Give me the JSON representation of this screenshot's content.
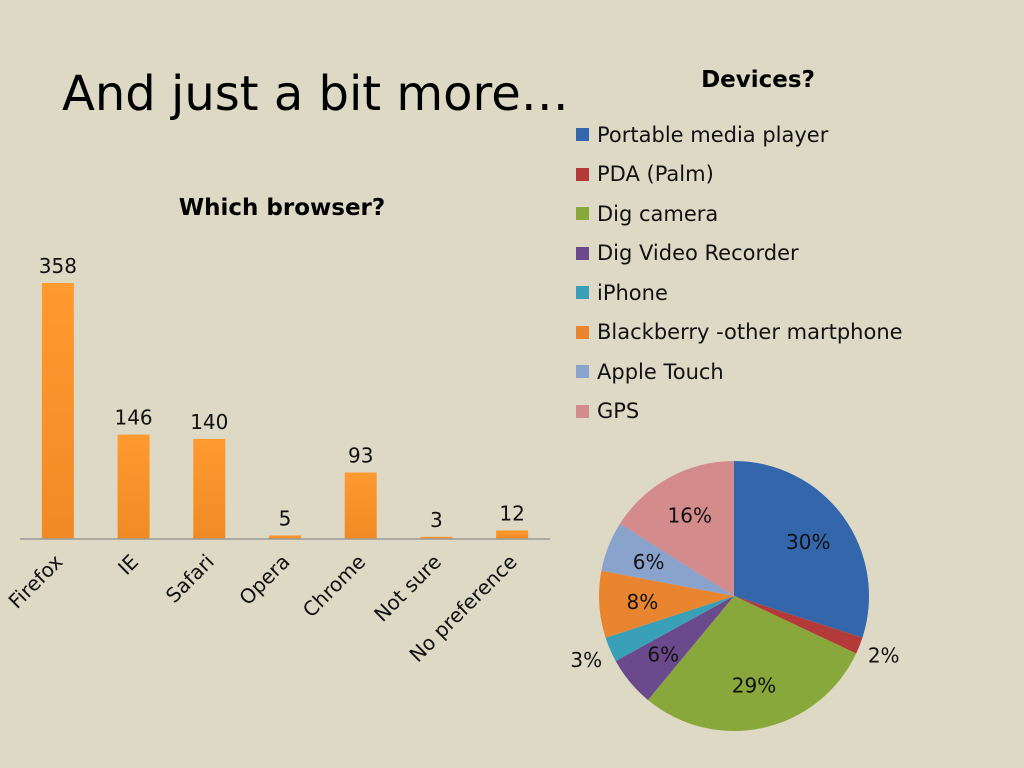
{
  "slide": {
    "title": "And just a bit more…"
  },
  "chart_data": [
    {
      "type": "bar",
      "title": "Which browser?",
      "categories": [
        "Firefox",
        "IE",
        "Safari",
        "Opera",
        "Chrome",
        "Not sure",
        "No preference"
      ],
      "values": [
        358,
        146,
        140,
        5,
        93,
        3,
        12
      ],
      "data_labels": [
        "358",
        "146",
        "140",
        "5",
        "93",
        "3",
        "12"
      ],
      "ylim": [
        0,
        358
      ],
      "grid": false,
      "legend": "none",
      "colors": {
        "bar": "#f08a24",
        "bar_light": "#ff9a30",
        "axis": "#999999"
      }
    },
    {
      "type": "pie",
      "title": "Devices?",
      "labels": [
        "Portable media player",
        "PDA (Palm)",
        "Dig camera",
        "Dig Video Recorder",
        "iPhone",
        "Blackberry -other martphone",
        "Apple Touch",
        "GPS"
      ],
      "values": [
        30,
        2,
        29,
        6,
        3,
        8,
        6,
        16
      ],
      "data_labels": [
        "30%",
        "2%",
        "29%",
        "6%",
        "3%",
        "8%",
        "6%",
        "16%"
      ],
      "colors": [
        "#3366aa",
        "#b33a38",
        "#89a83c",
        "#6a4a8c",
        "#3aa0b8",
        "#e9852f",
        "#8aa3cc",
        "#d38b8b"
      ],
      "legend": "top-right"
    }
  ]
}
